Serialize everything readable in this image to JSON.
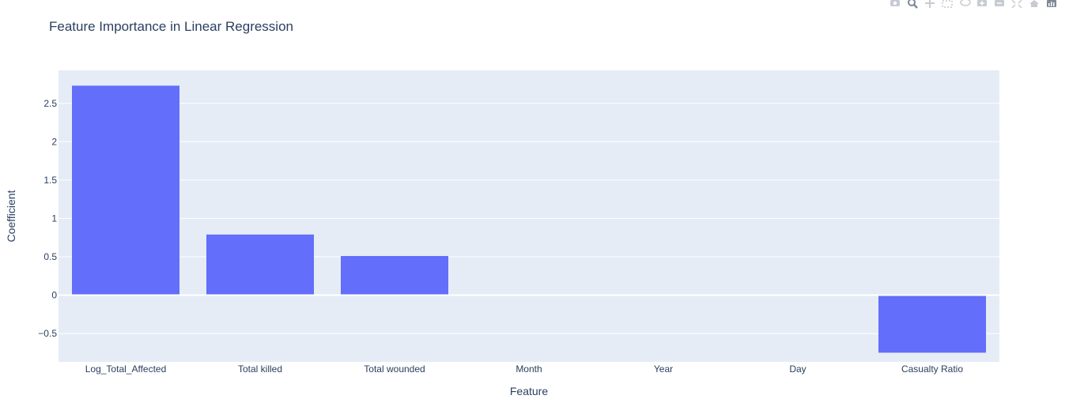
{
  "chart_data": {
    "type": "bar",
    "title": "Feature Importance in Linear Regression",
    "xlabel": "Feature",
    "ylabel": "Coefficient",
    "categories": [
      "Log_Total_Affected",
      "Total killed",
      "Total wounded",
      "Month",
      "Year",
      "Day",
      "Casualty Ratio"
    ],
    "values": [
      2.73,
      0.79,
      0.51,
      0.01,
      -0.005,
      0.005,
      -0.75
    ],
    "ylim": [
      -0.87,
      2.93
    ],
    "yticks": [
      -0.5,
      0,
      0.5,
      1,
      1.5,
      2,
      2.5
    ],
    "ytick_labels": [
      "−0.5",
      "0",
      "0.5",
      "1",
      "1.5",
      "2",
      "2.5"
    ],
    "grid": true,
    "bar_color": "#636efa",
    "plot_bg": "#e5ecf6",
    "text_color": "#2a3f5f"
  },
  "modebar": {
    "icons": [
      "camera-icon",
      "zoom-icon",
      "pan-icon",
      "box-select-icon",
      "lasso-select-icon",
      "zoom-in-icon",
      "zoom-out-icon",
      "autoscale-icon",
      "reset-axes-icon",
      "plotly-logo-icon"
    ]
  }
}
